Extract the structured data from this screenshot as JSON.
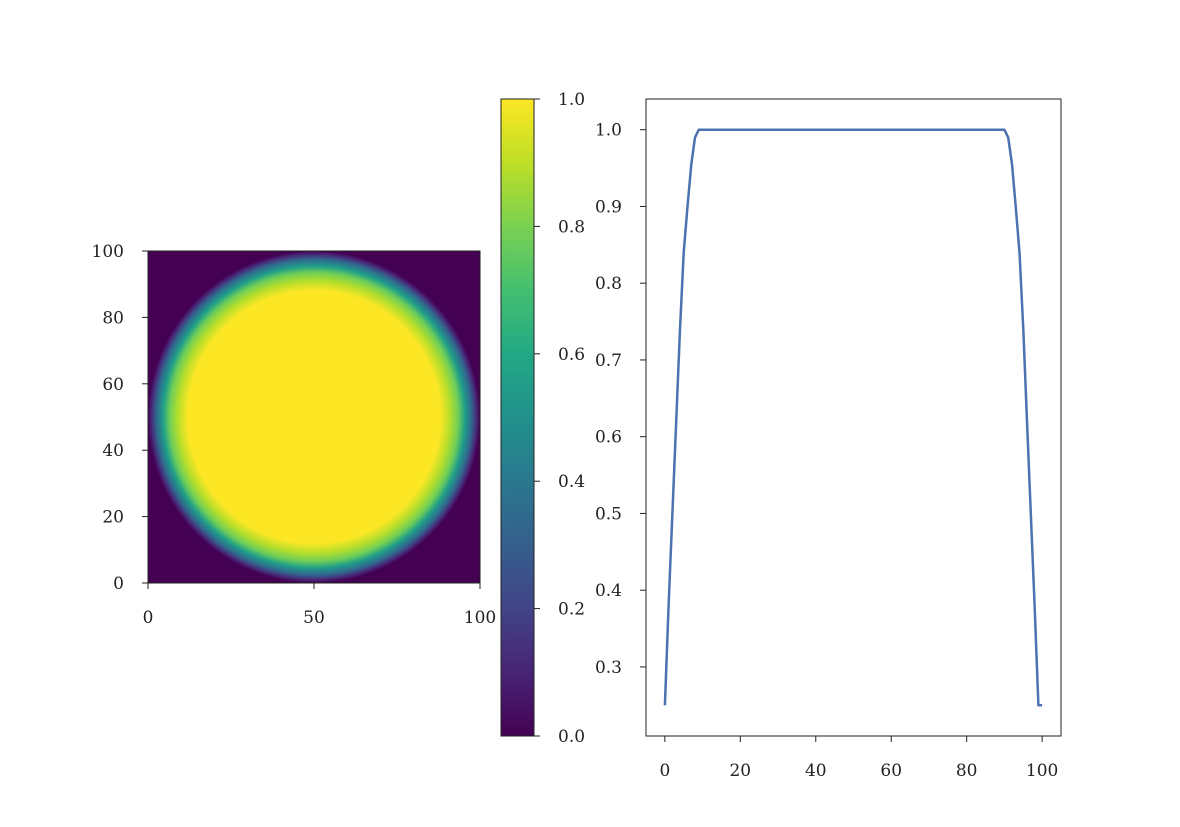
{
  "chart_data": [
    {
      "type": "heatmap",
      "title": "",
      "xlabel": "",
      "ylabel": "",
      "description_values": "circular disk: 1.0 inside radius ~39, smooth falloff to 0 at radius ~50, centered at (50,50), grid 0-100",
      "xlim": [
        0,
        100
      ],
      "ylim": [
        0,
        100
      ],
      "center": [
        50,
        50
      ],
      "inner_radius": 39,
      "outer_radius": 50,
      "x_ticks": [
        0,
        50,
        100
      ],
      "y_ticks": [
        0,
        20,
        40,
        60,
        80,
        100
      ],
      "colormap": "viridis",
      "grid": false
    },
    {
      "type": "colorbar",
      "range": [
        0.0,
        1.0
      ],
      "ticks": [
        "0.0",
        "0.2",
        "0.4",
        "0.6",
        "0.8",
        "1.0"
      ],
      "colormap": "viridis"
    },
    {
      "type": "line",
      "title": "",
      "xlabel": "",
      "ylabel": "",
      "xlim": [
        -5,
        105
      ],
      "ylim": [
        0.21,
        1.04
      ],
      "x_ticks": [
        0,
        20,
        40,
        60,
        80,
        100
      ],
      "y_ticks": [
        "0.3",
        "0.4",
        "0.5",
        "0.6",
        "0.7",
        "0.8",
        "0.9",
        "1.0"
      ],
      "grid": false,
      "color": "#4c72b0",
      "x": [
        0,
        1,
        2,
        3,
        4,
        5,
        6,
        7,
        8,
        9,
        10,
        15,
        20,
        30,
        40,
        50,
        60,
        70,
        80,
        85,
        90,
        91,
        92,
        93,
        94,
        95,
        96,
        97,
        98,
        99,
        100
      ],
      "y": [
        0.25,
        0.38,
        0.5,
        0.62,
        0.74,
        0.84,
        0.9,
        0.955,
        0.99,
        1.0,
        1.0,
        1.0,
        1.0,
        1.0,
        1.0,
        1.0,
        1.0,
        1.0,
        1.0,
        1.0,
        1.0,
        0.99,
        0.955,
        0.9,
        0.84,
        0.74,
        0.62,
        0.5,
        0.38,
        0.25,
        0.25
      ]
    }
  ]
}
